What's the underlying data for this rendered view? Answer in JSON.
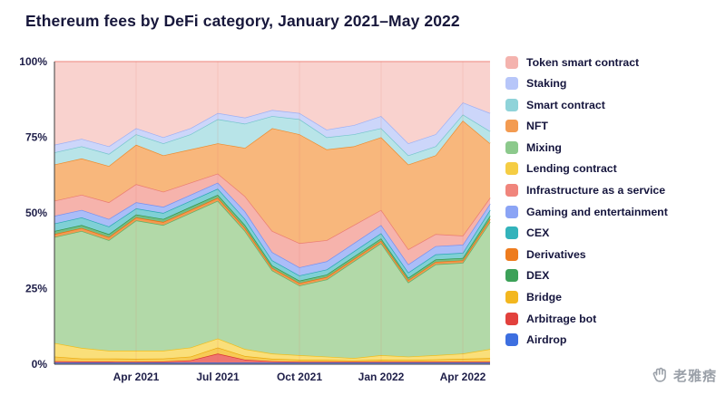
{
  "title": "Ethereum fees by DeFi category, January 2021–May 2022",
  "watermark": {
    "text": "老雅痞"
  },
  "chart_data": {
    "type": "area",
    "stacked": true,
    "title": "Ethereum fees by DeFi category, January 2021–May 2022",
    "xlabel": "",
    "ylabel": "",
    "ylim": [
      0,
      100
    ],
    "grid": true,
    "grid_color": "#f5cbc7",
    "axis_color": "#3c3c3c",
    "legend_position": "right",
    "x": [
      "Jan 2021",
      "Feb 2021",
      "Mar 2021",
      "Apr 2021",
      "May 2021",
      "Jun 2021",
      "Jul 2021",
      "Aug 2021",
      "Sep 2021",
      "Oct 2021",
      "Nov 2021",
      "Dec 2021",
      "Jan 2022",
      "Feb 2022",
      "Mar 2022",
      "Apr 2022",
      "May 2022"
    ],
    "x_ticks": [
      {
        "index": 3,
        "label": "Apr 2021"
      },
      {
        "index": 6,
        "label": "Jul 2021"
      },
      {
        "index": 9,
        "label": "Oct 2021"
      },
      {
        "index": 12,
        "label": "Jan 2022"
      },
      {
        "index": 15,
        "label": "Apr 2022"
      }
    ],
    "y_ticks": [
      {
        "value": 0,
        "label": "0%"
      },
      {
        "value": 25,
        "label": "25%"
      },
      {
        "value": 50,
        "label": "50%"
      },
      {
        "value": 75,
        "label": "75%"
      },
      {
        "value": 100,
        "label": "100%"
      }
    ],
    "legend_order": [
      "Token smart contract",
      "Staking",
      "Smart contract",
      "NFT",
      "Mixing",
      "Lending contract",
      "Infrastructure as a service",
      "Gaming and entertainment",
      "CEX",
      "Derivatives",
      "DEX",
      "Bridge",
      "Arbitrage bot",
      "Airdrop"
    ],
    "series": [
      {
        "name": "Airdrop",
        "swatch": "#3d6fe0",
        "fill": "#7b9af0",
        "stroke": "#3563d6",
        "values": [
          0.5,
          0.5,
          0.5,
          0.5,
          0.5,
          0.5,
          0.5,
          0.5,
          0.5,
          0.5,
          0.5,
          0.5,
          0.5,
          0.5,
          0.5,
          0.5,
          0.5
        ]
      },
      {
        "name": "Arbitrage bot",
        "swatch": "#e2413d",
        "fill": "#ee7571",
        "stroke": "#d93732",
        "values": [
          0.5,
          0.4,
          0.4,
          0.3,
          0.4,
          0.8,
          3,
          1,
          0.5,
          0.3,
          0.3,
          0.3,
          0.3,
          0.3,
          0.3,
          0.3,
          0.3
        ]
      },
      {
        "name": "Bridge",
        "swatch": "#f3b71f",
        "fill": "#f7ca55",
        "stroke": "#eaa90c",
        "values": [
          1.5,
          1,
          1,
          1,
          1,
          1.2,
          2,
          1.2,
          0.8,
          0.7,
          0.6,
          0.5,
          0.7,
          0.6,
          0.8,
          1,
          1.2
        ]
      },
      {
        "name": "Lending contract",
        "swatch": "#f5cd44",
        "fill": "#fadf7a",
        "stroke": "#eebd1e",
        "values": [
          4.5,
          3.5,
          2.6,
          2.7,
          2.6,
          3,
          3,
          2.3,
          1.7,
          1.5,
          1.1,
          0.7,
          1.5,
          1.1,
          1.4,
          1.7,
          3
        ]
      },
      {
        "name": "Mixing",
        "swatch": "#8cc98c",
        "fill": "#b2d9a8",
        "stroke": "#5cb268",
        "values": [
          35,
          38.6,
          36.5,
          43,
          41.5,
          44.5,
          45.5,
          39,
          27.5,
          23,
          25.5,
          32,
          37,
          24.5,
          30,
          30,
          42
        ]
      },
      {
        "name": "Derivatives",
        "swatch": "#ee7c1e",
        "fill": "#f49a51",
        "stroke": "#e96f0d",
        "values": [
          1,
          1,
          1,
          1,
          1,
          1,
          1,
          1,
          0.8,
          0.8,
          0.8,
          0.8,
          0.8,
          0.8,
          0.8,
          0.8,
          1
        ]
      },
      {
        "name": "DEX",
        "swatch": "#3ca158",
        "fill": "#74bd85",
        "stroke": "#2f9747",
        "values": [
          1,
          1,
          1,
          1,
          1,
          1,
          1,
          1,
          0.8,
          0.8,
          0.8,
          0.8,
          0.8,
          0.8,
          0.8,
          0.8,
          1
        ]
      },
      {
        "name": "CEX",
        "swatch": "#33b3bb",
        "fill": "#7fd0d5",
        "stroke": "#28a8b2",
        "values": [
          2.5,
          2.5,
          2.5,
          2,
          2,
          2,
          2,
          2,
          1.7,
          1.7,
          1.7,
          1.7,
          1.7,
          1.7,
          1.7,
          1.7,
          2
        ]
      },
      {
        "name": "Gaming and entertainment",
        "swatch": "#8ba4f5",
        "fill": "#aabdf8",
        "stroke": "#7590f1",
        "values": [
          2.5,
          2.5,
          2.5,
          2,
          2,
          2,
          2,
          2.5,
          2.7,
          2.7,
          2.7,
          2.7,
          2.7,
          2.7,
          2.7,
          2.7,
          2
        ]
      },
      {
        "name": "Infrastructure as a service",
        "swatch": "#f0857c",
        "fill": "#f6b3ac",
        "stroke": "#ea7b71",
        "values": [
          5,
          5,
          5.5,
          6,
          5,
          4,
          3,
          5,
          7,
          8,
          7,
          6,
          5,
          5,
          4,
          3,
          2
        ]
      },
      {
        "name": "NFT",
        "swatch": "#f39b51",
        "fill": "#f8b77c",
        "stroke": "#ed8b2d",
        "values": [
          12,
          12,
          12,
          13,
          12,
          11,
          10,
          16,
          34,
          36,
          30,
          26,
          24,
          28,
          26,
          38,
          18
        ]
      },
      {
        "name": "Smart contract",
        "swatch": "#8fd3d9",
        "fill": "#b8e4e8",
        "stroke": "#74c5cc",
        "values": [
          4,
          4,
          4,
          3.5,
          4,
          5,
          8,
          8,
          4,
          5,
          4,
          4,
          3,
          3,
          3,
          2,
          4
        ]
      },
      {
        "name": "Staking",
        "swatch": "#b7c6f9",
        "fill": "#ccd6fa",
        "stroke": "#9db0f5",
        "values": [
          2.5,
          2.5,
          2.5,
          2,
          2,
          2,
          2,
          2,
          2,
          2,
          2.5,
          3,
          4,
          4,
          4,
          4,
          6
        ]
      },
      {
        "name": "Token smart contract",
        "swatch": "#f4b3ae",
        "fill": "#f9d2ce",
        "stroke": "#f2a69f",
        "values": [
          27.5,
          25.5,
          28,
          22,
          25,
          22,
          17,
          18.5,
          16,
          17,
          22.5,
          21,
          18,
          27,
          24,
          13.5,
          17
        ]
      }
    ]
  }
}
